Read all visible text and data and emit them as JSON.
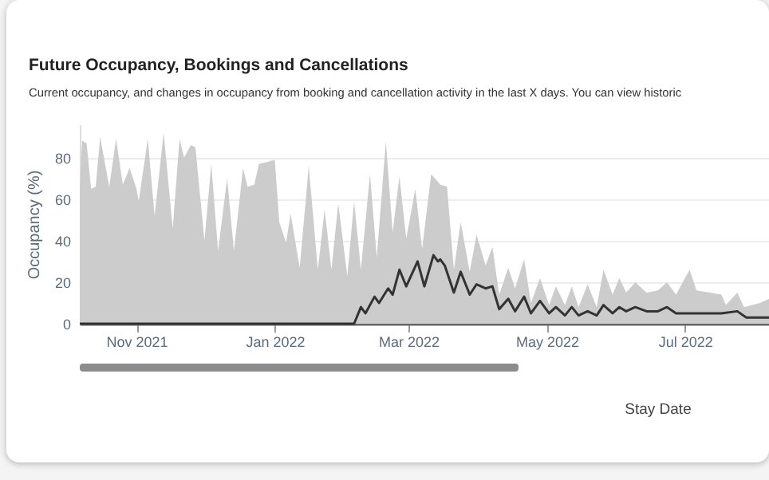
{
  "chart_data": {
    "type": "area",
    "title": "Future Occupancy, Bookings and Cancellations",
    "subtitle": "Current occupancy, and changes in occupancy from booking and cancellation activity in the last X days. You can view historic",
    "xlabel": "Stay Date",
    "ylabel": "Occupancy (%)",
    "xlim": [
      "2021-10-07",
      "2022-08-07"
    ],
    "xticks": [
      {
        "value": "2021-11-01",
        "label": "Nov 2021"
      },
      {
        "value": "2022-01-01",
        "label": "Jan 2022"
      },
      {
        "value": "2022-03-01",
        "label": "Mar 2022"
      },
      {
        "value": "2022-05-01",
        "label": "May 2022"
      },
      {
        "value": "2022-07-01",
        "label": "Jul 2022"
      }
    ],
    "ylim": [
      0,
      96
    ],
    "yticks": [
      0,
      20,
      40,
      60,
      80
    ],
    "grid": "y",
    "series": [
      {
        "color": "#cccccc",
        "x": [
          "2021-10-07",
          "2021-10-08",
          "2021-10-10",
          "2021-10-12",
          "2021-10-14",
          "2021-10-16",
          "2021-10-19",
          "2021-10-20",
          "2021-10-23",
          "2021-10-26",
          "2021-10-29",
          "2021-11-01",
          "2021-11-02",
          "2021-11-06",
          "2021-11-09",
          "2021-11-13",
          "2021-11-17",
          "2021-11-20",
          "2021-11-22",
          "2021-11-25",
          "2021-11-27",
          "2021-12-01",
          "2021-12-04",
          "2021-12-07",
          "2021-12-11",
          "2021-12-14",
          "2021-12-18",
          "2021-12-20",
          "2021-12-23",
          "2021-12-25",
          "2021-12-29",
          "2022-01-01",
          "2022-01-03",
          "2022-01-06",
          "2022-01-08",
          "2022-01-12",
          "2022-01-16",
          "2022-01-20",
          "2022-01-23",
          "2022-01-26",
          "2022-01-29",
          "2022-02-02",
          "2022-02-05",
          "2022-02-08",
          "2022-02-12",
          "2022-02-15",
          "2022-02-19",
          "2022-02-22",
          "2022-02-25",
          "2022-02-28",
          "2022-03-04",
          "2022-03-07",
          "2022-03-11",
          "2022-03-15",
          "2022-03-18",
          "2022-03-21",
          "2022-03-24",
          "2022-03-28",
          "2022-03-31",
          "2022-04-04",
          "2022-04-07",
          "2022-04-10",
          "2022-04-14",
          "2022-04-17",
          "2022-04-21",
          "2022-04-24",
          "2022-04-28",
          "2022-05-02",
          "2022-05-05",
          "2022-05-09",
          "2022-05-12",
          "2022-05-15",
          "2022-05-19",
          "2022-05-23",
          "2022-05-26",
          "2022-05-30",
          "2022-06-02",
          "2022-06-05",
          "2022-06-09",
          "2022-06-14",
          "2022-06-19",
          "2022-06-23",
          "2022-06-27",
          "2022-07-03",
          "2022-07-06",
          "2022-07-12",
          "2022-07-17",
          "2022-07-19",
          "2022-07-24",
          "2022-07-27",
          "2022-08-03",
          "2022-08-07"
        ],
        "values": [
          64,
          88,
          87,
          65,
          66,
          90,
          72,
          66,
          89,
          67,
          75,
          65,
          59,
          89,
          52,
          92,
          46,
          89,
          80,
          86,
          85,
          40,
          77,
          35,
          70,
          35,
          75,
          66,
          67,
          77,
          78,
          79,
          49,
          39,
          53,
          27,
          76,
          26,
          55,
          26,
          58,
          23,
          59,
          26,
          72,
          32,
          88,
          44,
          71,
          41,
          65,
          36,
          72,
          67,
          66,
          26,
          49,
          25,
          43,
          28,
          37,
          14,
          27,
          17,
          31,
          10,
          22,
          9,
          18,
          9,
          18,
          8,
          19,
          8,
          26,
          14,
          22,
          15,
          20,
          15,
          16,
          20,
          14,
          26,
          16,
          15,
          14,
          9,
          15,
          8,
          10,
          12
        ]
      },
      {
        "type": "line",
        "color": "#333333",
        "x": [
          "2021-10-07",
          "2022-02-05",
          "2022-02-08",
          "2022-02-10",
          "2022-02-14",
          "2022-02-16",
          "2022-02-20",
          "2022-02-22",
          "2022-02-25",
          "2022-02-28",
          "2022-03-05",
          "2022-03-08",
          "2022-03-12",
          "2022-03-14",
          "2022-03-15",
          "2022-03-17",
          "2022-03-21",
          "2022-03-24",
          "2022-03-28",
          "2022-03-31",
          "2022-04-04",
          "2022-04-07",
          "2022-04-10",
          "2022-04-14",
          "2022-04-17",
          "2022-04-21",
          "2022-04-24",
          "2022-04-28",
          "2022-05-02",
          "2022-05-05",
          "2022-05-09",
          "2022-05-12",
          "2022-05-15",
          "2022-05-19",
          "2022-05-23",
          "2022-05-26",
          "2022-05-30",
          "2022-06-02",
          "2022-06-05",
          "2022-06-09",
          "2022-06-14",
          "2022-06-19",
          "2022-06-23",
          "2022-06-27",
          "2022-07-06",
          "2022-07-17",
          "2022-07-24",
          "2022-07-28",
          "2022-08-07"
        ],
        "values": [
          0,
          0,
          8,
          5,
          13,
          10,
          17,
          14,
          26,
          18,
          30,
          18,
          33,
          30,
          31,
          28,
          15,
          25,
          14,
          19,
          17,
          18,
          7,
          12,
          6,
          13,
          5,
          11,
          5,
          8,
          4,
          8,
          4,
          6,
          4,
          9,
          5,
          8,
          6,
          8,
          6,
          6,
          8,
          5,
          5,
          5,
          6,
          3,
          3
        ]
      }
    ]
  }
}
